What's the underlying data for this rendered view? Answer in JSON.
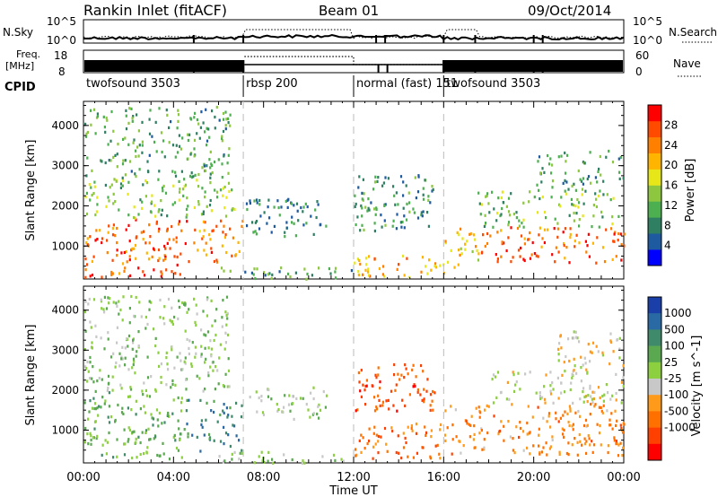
{
  "header": {
    "station": "Rankin Inlet (fitACF)",
    "beam": "Beam 01",
    "date": "09/Oct/2014"
  },
  "noise_panel": {
    "left_label": "N.Sky",
    "left_ticks": [
      "10^5",
      "10^0"
    ],
    "right_ticks": [
      "10^5",
      "10^0"
    ],
    "right_label": "N.Search"
  },
  "freq_panel": {
    "left_label_line1": "Freq.",
    "left_label_line2": "[MHz]",
    "left_ticks": [
      "18",
      "8"
    ],
    "right_ticks": [
      "60",
      "0"
    ],
    "right_label": "Nave"
  },
  "cpid": {
    "label": "CPID",
    "segments": [
      {
        "name": "twofsound 3503",
        "start": 0.0,
        "end": 7.1
      },
      {
        "name": "rbsp 200",
        "start": 7.1,
        "end": 12.0
      },
      {
        "name": "normal (fast) 151",
        "start": 12.0,
        "end": 16.0
      },
      {
        "name": "twofsound 3503",
        "start": 16.0,
        "end": 24.0
      }
    ]
  },
  "x_axis": {
    "label": "Time UT",
    "ticks": [
      "00:00",
      "04:00",
      "08:00",
      "12:00",
      "16:00",
      "20:00",
      "00:00"
    ],
    "range_hours": [
      0,
      24
    ]
  },
  "chart_data": [
    {
      "type": "heatmap",
      "parameter": "Power",
      "ylabel": "Slant Range [km]",
      "yticks": [
        "1000",
        "2000",
        "3000",
        "4000"
      ],
      "ylim_km": [
        180,
        4600
      ],
      "colorbar": {
        "label": "Power [dB]",
        "ticks": [
          "4",
          "8",
          "12",
          "16",
          "20",
          "24",
          "28"
        ],
        "range": [
          0,
          32
        ],
        "colors": [
          "#0000ff",
          "#1e5aa0",
          "#2f7f62",
          "#4caf50",
          "#8dc63f",
          "#e6e619",
          "#ffb400",
          "#ff8000",
          "#ff4a00",
          "#ff0000"
        ]
      },
      "regions": [
        {
          "t0": 0.0,
          "t1": 4.6,
          "r0": 250,
          "r1": 1700,
          "value": 26
        },
        {
          "t0": 4.6,
          "t1": 7.1,
          "r0": 600,
          "r1": 1700,
          "value": 24
        },
        {
          "t0": 0.0,
          "t1": 6.8,
          "r0": 1700,
          "r1": 2700,
          "value": 14
        },
        {
          "t0": 0.0,
          "t1": 6.5,
          "r0": 2700,
          "r1": 4500,
          "value": 11
        },
        {
          "t0": 7.2,
          "t1": 10.8,
          "r0": 1250,
          "r1": 2200,
          "value": 8
        },
        {
          "t0": 6.0,
          "t1": 12.0,
          "r0": 200,
          "r1": 500,
          "value": 10
        },
        {
          "t0": 12.0,
          "t1": 15.6,
          "r0": 1400,
          "r1": 2800,
          "value": 9
        },
        {
          "t0": 12.0,
          "t1": 16.0,
          "r0": 250,
          "r1": 800,
          "value": 22
        },
        {
          "t0": 16.0,
          "t1": 17.5,
          "r0": 500,
          "r1": 1500,
          "value": 20
        },
        {
          "t0": 17.5,
          "t1": 24.0,
          "r0": 600,
          "r1": 1500,
          "value": 26
        },
        {
          "t0": 17.5,
          "t1": 24.0,
          "r0": 1500,
          "r1": 2400,
          "value": 13
        },
        {
          "t0": 20.0,
          "t1": 24.0,
          "r0": 2400,
          "r1": 3400,
          "value": 10
        }
      ]
    },
    {
      "type": "heatmap",
      "parameter": "Velocity",
      "ylabel": "Slant Range [km]",
      "yticks": [
        "1000",
        "2000",
        "3000",
        "4000"
      ],
      "ylim_km": [
        180,
        4600
      ],
      "colorbar": {
        "label": "Velocity [m s^-1]",
        "ticks": [
          "1000",
          "500",
          "100",
          "25",
          "-25",
          "-100",
          "-500",
          "-1000"
        ],
        "range": [
          -1250,
          1250
        ],
        "colors": [
          "#1a3fa8",
          "#2a6aa4",
          "#3f8a6a",
          "#5aa850",
          "#8ccf3f",
          "#c8c8c8",
          "#ff9a1a",
          "#ff7000",
          "#ff4000",
          "#ff0000"
        ]
      },
      "regions": [
        {
          "t0": 0.0,
          "t1": 4.5,
          "r0": 300,
          "r1": 2000,
          "value": 300
        },
        {
          "t0": 4.5,
          "t1": 7.0,
          "r0": 500,
          "r1": 1800,
          "value": 700
        },
        {
          "t0": 0.0,
          "t1": 6.5,
          "r0": 2000,
          "r1": 4400,
          "value": 150
        },
        {
          "t0": 7.3,
          "t1": 10.8,
          "r0": 1300,
          "r1": 2100,
          "value": 80
        },
        {
          "t0": 6.0,
          "t1": 12.0,
          "r0": 200,
          "r1": 500,
          "value": 150
        },
        {
          "t0": 12.0,
          "t1": 16.0,
          "r0": 300,
          "r1": 1200,
          "value": -600
        },
        {
          "t0": 12.0,
          "t1": 15.6,
          "r0": 1500,
          "r1": 2700,
          "value": -800
        },
        {
          "t0": 16.0,
          "t1": 24.0,
          "r0": 400,
          "r1": 1700,
          "value": -500
        },
        {
          "t0": 18.0,
          "t1": 24.0,
          "r0": 1700,
          "r1": 2500,
          "value": -60
        },
        {
          "t0": 21.0,
          "t1": 24.0,
          "r0": 2500,
          "r1": 3500,
          "value": -150
        }
      ]
    }
  ]
}
